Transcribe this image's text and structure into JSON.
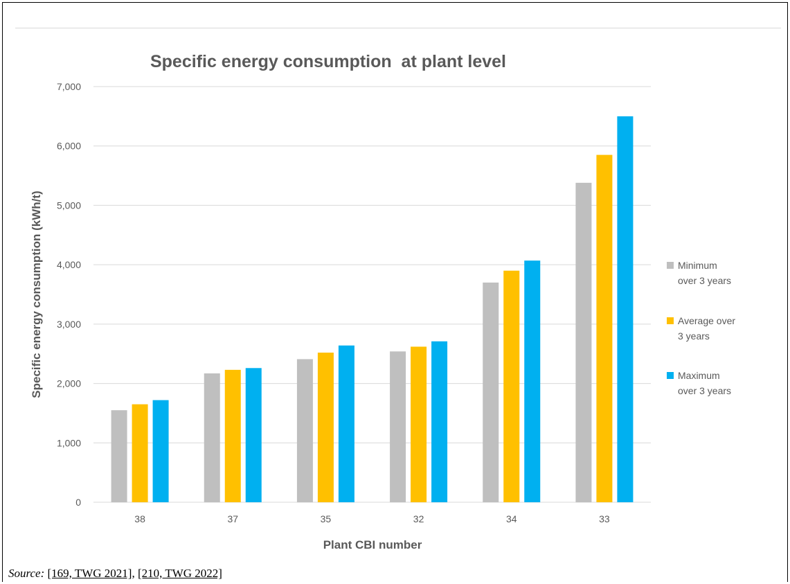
{
  "chart_data": {
    "type": "bar",
    "title": "Specific energy consumption  at plant level",
    "xlabel": "Plant CBI number",
    "ylabel": "Specific energy consumption (kWh/t)",
    "ylim": [
      0,
      7000
    ],
    "yticks": [
      0,
      1000,
      2000,
      3000,
      4000,
      5000,
      6000,
      7000
    ],
    "ytick_labels": [
      "0",
      "1,000",
      "2,000",
      "3,000",
      "4,000",
      "5,000",
      "6,000",
      "7,000"
    ],
    "grid": true,
    "legend_position": "right",
    "categories": [
      "38",
      "37",
      "35",
      "32",
      "34",
      "33"
    ],
    "series": [
      {
        "name": "Minimum over 3 years",
        "color": "#bfbfbf",
        "values": [
          1550,
          2170,
          2410,
          2540,
          3700,
          5380
        ]
      },
      {
        "name": "Average over 3 years",
        "color": "#ffc000",
        "values": [
          1650,
          2230,
          2520,
          2620,
          3900,
          5850
        ]
      },
      {
        "name": "Maximum over 3 years",
        "color": "#00b0f0",
        "values": [
          1720,
          2260,
          2640,
          2710,
          4070,
          6500
        ]
      }
    ],
    "legend_lines": [
      [
        "Minimum",
        "over 3 years"
      ],
      [
        "Average over",
        "3 years"
      ],
      [
        "Maximum",
        "over 3 years"
      ]
    ]
  },
  "source": {
    "label": "Source:",
    "refs": [
      "[169, TWG 2021]",
      "[210, TWG 2022]"
    ],
    "separator": ", "
  }
}
